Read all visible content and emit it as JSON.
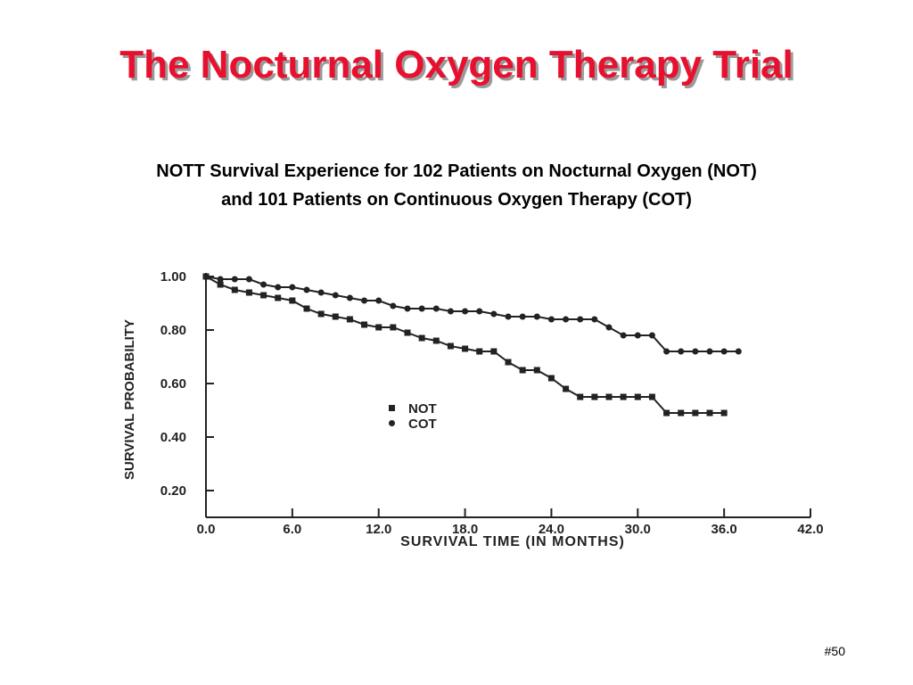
{
  "slide": {
    "title": "The Nocturnal Oxygen Therapy Trial",
    "subtitle_line1": "NOTT Survival Experience for 102 Patients on Nocturnal Oxygen (NOT)",
    "subtitle_line2": "and 101 Patients on Continuous Oxygen Therapy (COT)",
    "slide_number": "#50"
  },
  "colors": {
    "title": "#e8102e",
    "title_shadow": "#9a9a9a",
    "text": "#000000",
    "plot_ink": "#222222"
  },
  "chart_data": {
    "type": "line",
    "xlabel": "SURVIVAL TIME (IN MONTHS)",
    "ylabel": "SURVIVAL PROBABILITY",
    "xlim": [
      0,
      42
    ],
    "ylim": [
      0.1,
      1.0
    ],
    "x_ticks": [
      0,
      6,
      12,
      18,
      24,
      30,
      36,
      42
    ],
    "x_tick_labels": [
      "0.0",
      "6.0",
      "12.0",
      "18.0",
      "24.0",
      "30.0",
      "36.0",
      "42.0"
    ],
    "y_ticks": [
      0.2,
      0.4,
      0.6,
      0.8,
      1.0
    ],
    "y_tick_labels": [
      "0.20",
      "0.40",
      "0.60",
      "0.80",
      "1.00"
    ],
    "grid": false,
    "legend_position": "center",
    "series": [
      {
        "name": "NOT",
        "marker": "square",
        "x": [
          0,
          1,
          2,
          3,
          4,
          5,
          6,
          7,
          8,
          9,
          10,
          11,
          12,
          13,
          14,
          15,
          16,
          17,
          18,
          19,
          20,
          21,
          22,
          23,
          24,
          25,
          26,
          27,
          28,
          29,
          30,
          31,
          32,
          33,
          34,
          35,
          36
        ],
        "y": [
          1.0,
          0.97,
          0.95,
          0.94,
          0.93,
          0.92,
          0.91,
          0.88,
          0.86,
          0.85,
          0.84,
          0.82,
          0.81,
          0.81,
          0.79,
          0.77,
          0.76,
          0.74,
          0.73,
          0.72,
          0.72,
          0.68,
          0.65,
          0.65,
          0.62,
          0.58,
          0.55,
          0.55,
          0.55,
          0.55,
          0.55,
          0.55,
          0.49,
          0.49,
          0.49,
          0.49,
          0.49
        ]
      },
      {
        "name": "COT",
        "marker": "circle",
        "x": [
          0,
          1,
          2,
          3,
          4,
          5,
          6,
          7,
          8,
          9,
          10,
          11,
          12,
          13,
          14,
          15,
          16,
          17,
          18,
          19,
          20,
          21,
          22,
          23,
          24,
          25,
          26,
          27,
          28,
          29,
          30,
          31,
          32,
          33,
          34,
          35,
          36,
          37
        ],
        "y": [
          1.0,
          0.99,
          0.99,
          0.99,
          0.97,
          0.96,
          0.96,
          0.95,
          0.94,
          0.93,
          0.92,
          0.91,
          0.91,
          0.89,
          0.88,
          0.88,
          0.88,
          0.87,
          0.87,
          0.87,
          0.86,
          0.85,
          0.85,
          0.85,
          0.84,
          0.84,
          0.84,
          0.84,
          0.81,
          0.78,
          0.78,
          0.78,
          0.72,
          0.72,
          0.72,
          0.72,
          0.72,
          0.72
        ]
      }
    ]
  }
}
